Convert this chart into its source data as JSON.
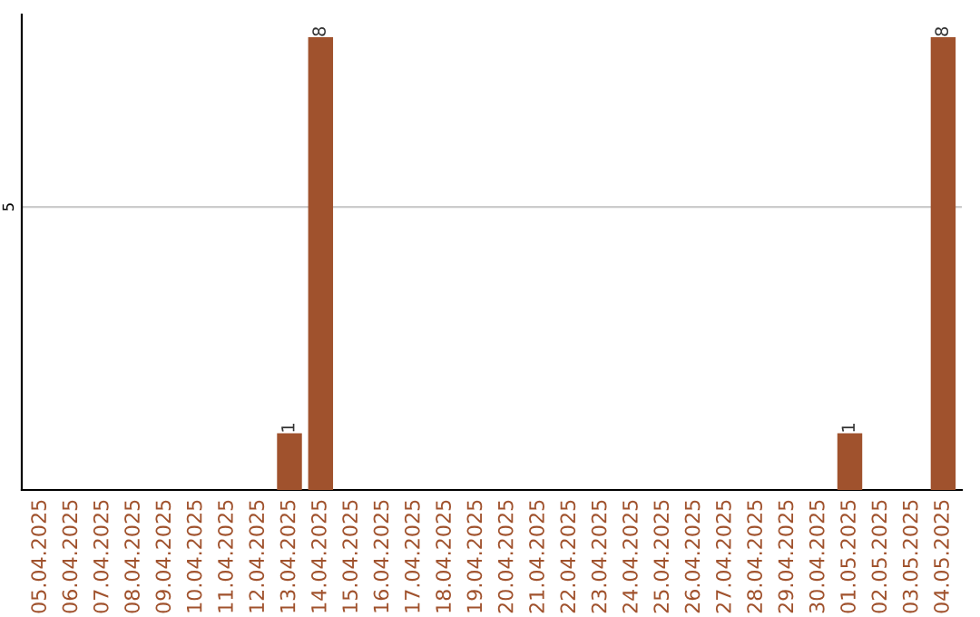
{
  "chart_data": {
    "type": "bar",
    "categories": [
      "05.04.2025",
      "06.04.2025",
      "07.04.2025",
      "08.04.2025",
      "09.04.2025",
      "10.04.2025",
      "11.04.2025",
      "12.04.2025",
      "13.04.2025",
      "14.04.2025",
      "15.04.2025",
      "16.04.2025",
      "17.04.2025",
      "18.04.2025",
      "19.04.2025",
      "20.04.2025",
      "21.04.2025",
      "22.04.2025",
      "23.04.2025",
      "24.04.2025",
      "25.04.2025",
      "26.04.2025",
      "27.04.2025",
      "28.04.2025",
      "29.04.2025",
      "30.04.2025",
      "01.05.2025",
      "02.05.2025",
      "03.05.2025",
      "04.05.2025"
    ],
    "values": [
      0,
      0,
      0,
      0,
      0,
      0,
      0,
      0,
      1,
      8,
      0,
      0,
      0,
      0,
      0,
      0,
      0,
      0,
      0,
      0,
      0,
      0,
      0,
      0,
      0,
      0,
      1,
      0,
      0,
      8
    ],
    "color": "#a0522d",
    "ylim": [
      0,
      8.4
    ],
    "yticks": [
      5
    ],
    "grid": "y",
    "value_labels": [
      null,
      null,
      null,
      null,
      null,
      null,
      null,
      null,
      "1",
      "8",
      null,
      null,
      null,
      null,
      null,
      null,
      null,
      null,
      null,
      null,
      null,
      null,
      null,
      null,
      null,
      null,
      "1",
      null,
      null,
      "8"
    ]
  }
}
